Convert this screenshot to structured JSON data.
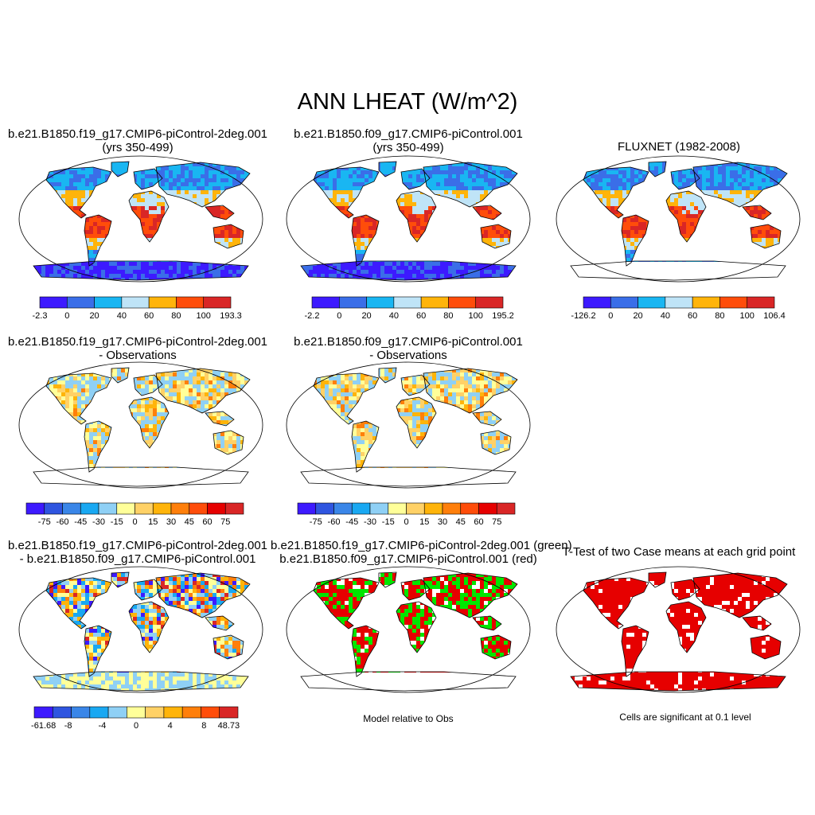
{
  "main_title": "ANN LHEAT (W/m^2)",
  "colors": {
    "scale7": [
      "#3d1aff",
      "#3a6ee8",
      "#19b6f2",
      "#bfe4f7",
      "#ffb40a",
      "#ff4d0a",
      "#d92626"
    ],
    "scale12": [
      "#3d1aff",
      "#2f55e0",
      "#3a86e8",
      "#19a8f2",
      "#8fd0f5",
      "#ffff99",
      "#ffd166",
      "#ffb40a",
      "#ff7f0a",
      "#ff4d0a",
      "#e60000",
      "#d92626"
    ],
    "scale11": [
      "#3d1aff",
      "#2f55e0",
      "#3a86e8",
      "#19a8f2",
      "#8fd0f5",
      "#ffff99",
      "#ffd166",
      "#ffb40a",
      "#ff7f0a",
      "#ff4d0a",
      "#d92626"
    ],
    "ttest_fill": "#e60000",
    "sig_green": "#00e600",
    "sig_red": "#e60000"
  },
  "panels": [
    {
      "id": "p1",
      "title_line1": "b.e21.B1850.f19_g17.CMIP6-piControl-2deg.001",
      "title_line2": "(yrs 350-499)",
      "colorbar": {
        "labels": [
          "-2.3",
          "0",
          "20",
          "40",
          "60",
          "80",
          "100",
          "193.3"
        ]
      }
    },
    {
      "id": "p2",
      "title_line1": "b.e21.B1850.f09_g17.CMIP6-piControl.001",
      "title_line2": "(yrs 350-499)",
      "colorbar": {
        "labels": [
          "-2.2",
          "0",
          "20",
          "40",
          "60",
          "80",
          "100",
          "195.2"
        ]
      }
    },
    {
      "id": "p3",
      "title_line1": "FLUXNET (1982-2008)",
      "title_line2": "",
      "colorbar": {
        "labels": [
          "-126.2",
          "0",
          "20",
          "40",
          "60",
          "80",
          "100",
          "106.4"
        ]
      }
    },
    {
      "id": "p4",
      "title_line1": "b.e21.B1850.f19_g17.CMIP6-piControl-2deg.001",
      "title_line2": "- Observations",
      "colorbar": {
        "labels": [
          "-75",
          "-60",
          "-45",
          "-30",
          "-15",
          "0",
          "15",
          "30",
          "45",
          "60",
          "75"
        ]
      }
    },
    {
      "id": "p5",
      "title_line1": "b.e21.B1850.f09_g17.CMIP6-piControl.001",
      "title_line2": "- Observations",
      "colorbar": {
        "labels": [
          "-75",
          "-60",
          "-45",
          "-30",
          "-15",
          "0",
          "15",
          "30",
          "45",
          "60",
          "75"
        ]
      }
    },
    {
      "id": "p6",
      "title_line1": "b.e21.B1850.f19_g17.CMIP6-piControl-2deg.001",
      "title_line2": "- b.e21.B1850.f09_g17.CMIP6-piControl.001",
      "colorbar": {
        "labels": [
          "-61.68",
          "-8",
          "-4",
          "0",
          "4",
          "8",
          "48.73"
        ]
      }
    },
    {
      "id": "p7",
      "title_line1": "b.e21.B1850.f19_g17.CMIP6-piControl-2deg.001 (green)",
      "title_line2": "b.e21.B1850.f09_g17.CMIP6-piControl.001 (red)",
      "note": "Model relative to Obs"
    },
    {
      "id": "p8",
      "title_line1": "T-Test of two Case means at each grid point",
      "title_line2": "",
      "note": "Cells are significant at 0.1 level"
    }
  ]
}
